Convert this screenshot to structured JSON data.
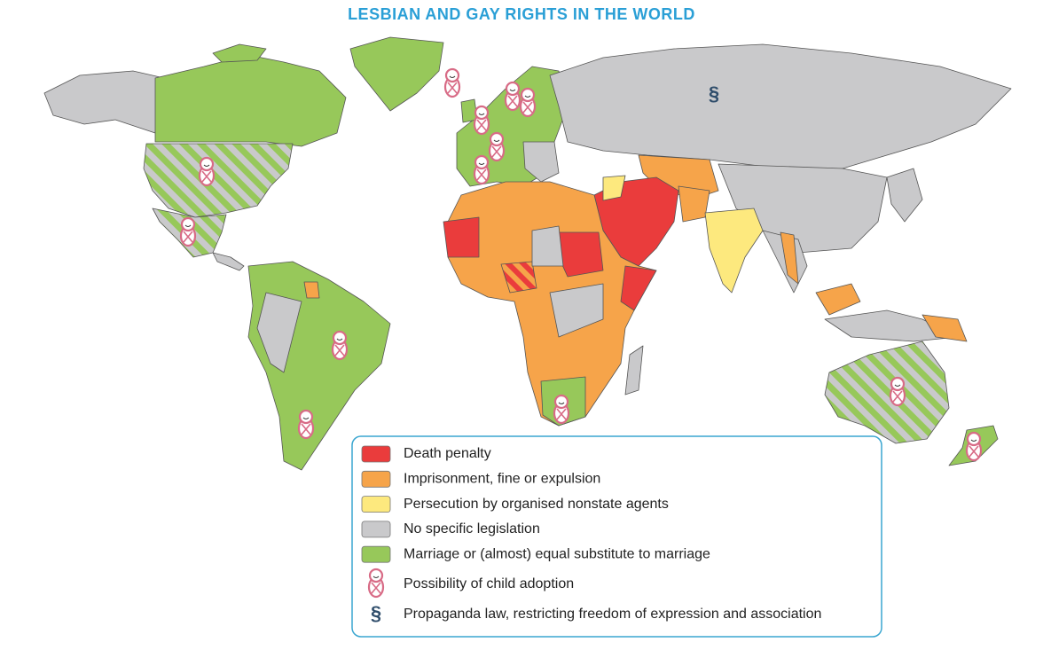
{
  "title": "LESBIAN AND GAY RIGHTS IN THE WORLD",
  "legend": {
    "items": [
      {
        "label": "Death penalty",
        "color": "#ea3c3c"
      },
      {
        "label": "Imprisonment, fine or expulsion",
        "color": "#f6a44a"
      },
      {
        "label": "Persecution by organised nonstate agents",
        "color": "#fde97e"
      },
      {
        "label": "No specific legislation",
        "color": "#c9c9cb"
      },
      {
        "label": "Marriage or (almost) equal substitute to marriage",
        "color": "#97c85a"
      }
    ],
    "adoption": {
      "label": "Possibility of child adoption"
    },
    "propaganda": {
      "symbol": "§",
      "label": "Propaganda law, restricting freedom of expression and association"
    }
  }
}
